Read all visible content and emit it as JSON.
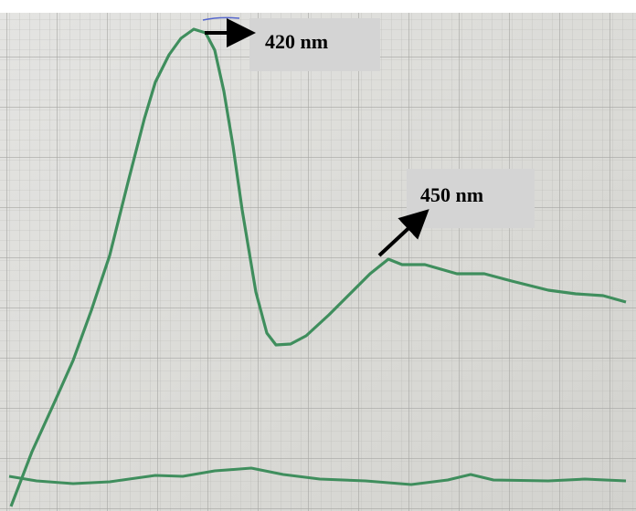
{
  "annotations": [
    {
      "label": "420 nm"
    },
    {
      "label": "450 nm"
    }
  ]
}
